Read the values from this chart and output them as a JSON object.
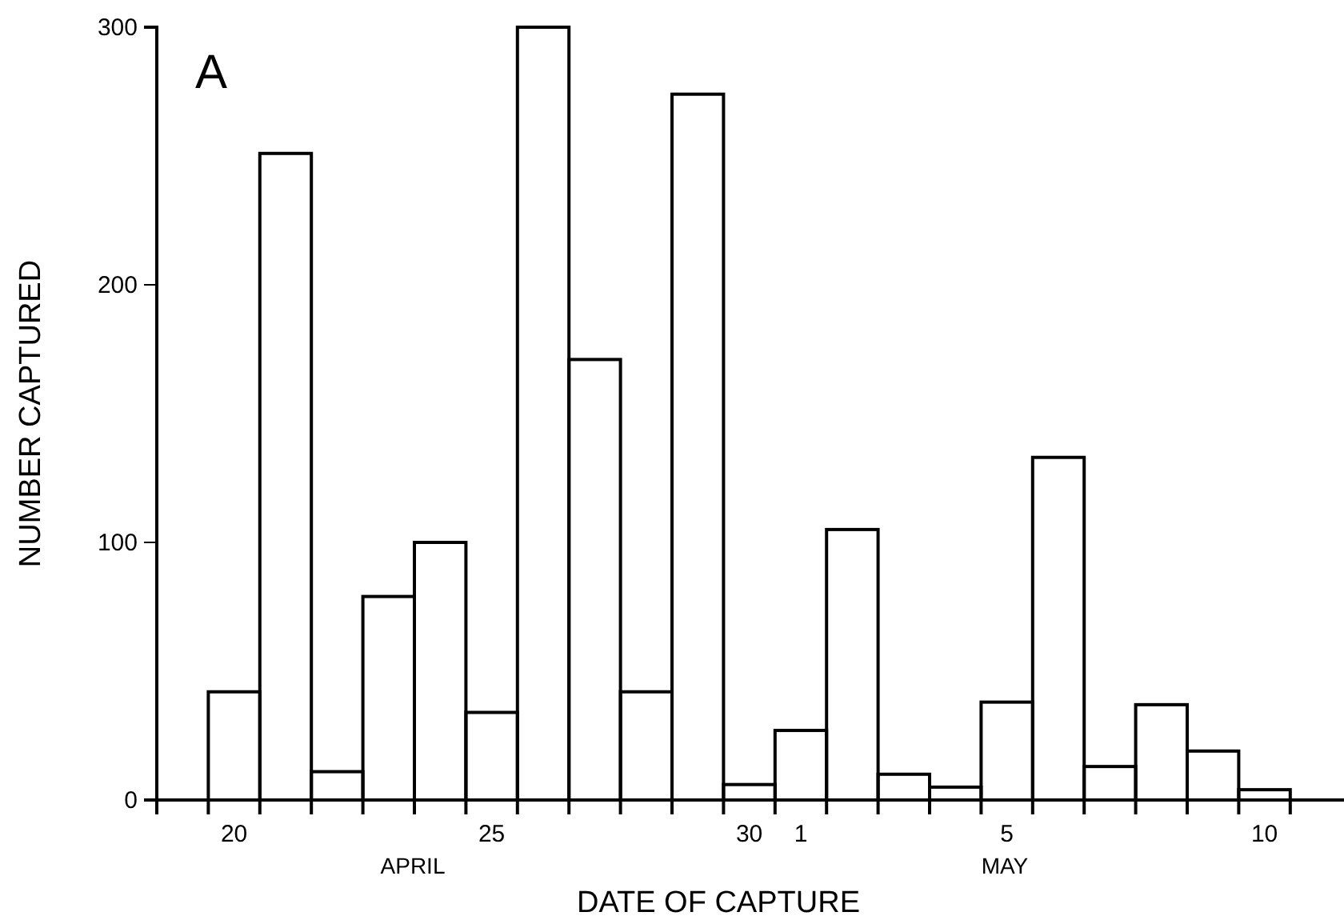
{
  "chart_data": {
    "type": "bar",
    "title": "A",
    "xlabel": "DATE OF CAPTURE",
    "ylabel": "NUMBER CAPTURED",
    "categories": [
      null,
      "20",
      null,
      null,
      null,
      null,
      "25",
      null,
      null,
      null,
      null,
      "30",
      "1",
      null,
      null,
      null,
      "5",
      null,
      null,
      null,
      null,
      "10",
      null
    ],
    "values": [
      null,
      42,
      251,
      11,
      79,
      100,
      34,
      300,
      171,
      42,
      274,
      6,
      27,
      105,
      10,
      5,
      38,
      133,
      13,
      37,
      19,
      4,
      null
    ],
    "color": "#000000",
    "ylim": [
      0,
      300
    ],
    "yticks": [
      0,
      100,
      200,
      300
    ],
    "annotations": [
      "APRIL",
      "MAY"
    ]
  }
}
